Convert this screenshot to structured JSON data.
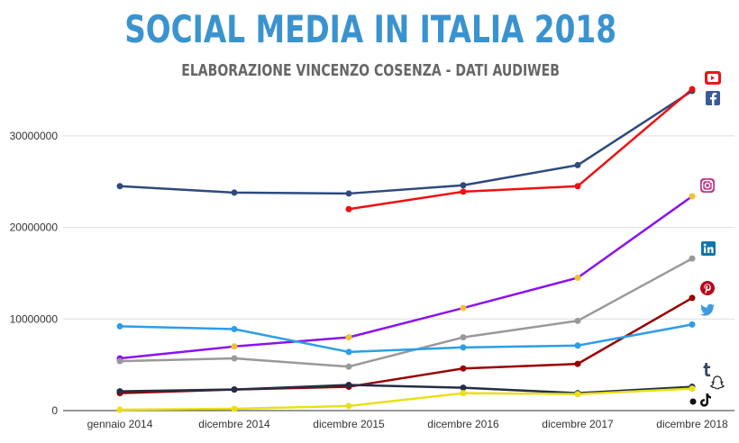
{
  "chart_data": {
    "type": "line",
    "title": "SOCIAL MEDIA IN ITALIA 2018",
    "subtitle": "ELABORAZIONE VINCENZO COSENZA - DATI AUDIWEB",
    "categories": [
      "gennaio 2014",
      "dicembre 2014",
      "dicembre 2015",
      "dicembre 2016",
      "dicembre 2017",
      "dicembre 2018"
    ],
    "ylim": [
      0,
      35000000
    ],
    "yticks": [
      0,
      10000000,
      20000000,
      30000000
    ],
    "ytick_labels": [
      "0",
      "10000000",
      "20000000",
      "30000000"
    ],
    "grid": true,
    "series": [
      {
        "icon": "facebook-icon",
        "color": "#2e4a7d",
        "values": [
          24500000,
          23800000,
          23700000,
          24600000,
          26800000,
          34900000
        ]
      },
      {
        "icon": "youtube-icon",
        "color": "#f01010",
        "values": [
          null,
          null,
          22000000,
          23900000,
          24500000,
          35100000
        ]
      },
      {
        "icon": "instagram-icon",
        "color": "#8a12ee",
        "values": [
          5700000,
          7000000,
          8000000,
          11200000,
          14500000,
          23400000
        ]
      },
      {
        "icon": "linkedin-icon",
        "color": "#999999",
        "values": [
          5400000,
          5700000,
          4800000,
          8000000,
          9800000,
          16600000
        ]
      },
      {
        "icon": "pinterest-icon",
        "color": "#990000",
        "values": [
          1900000,
          2300000,
          2600000,
          4600000,
          5100000,
          12300000
        ]
      },
      {
        "icon": "twitter-icon",
        "color": "#2c9ee8",
        "values": [
          9200000,
          8900000,
          6400000,
          6900000,
          7100000,
          9400000
        ]
      },
      {
        "icon": "tumblr-icon",
        "color": "#232e45",
        "values": [
          2100000,
          2300000,
          2800000,
          2500000,
          1900000,
          2600000
        ]
      },
      {
        "icon": "snapchat-icon",
        "color": "#e8e01a",
        "values": [
          100000,
          200000,
          500000,
          1900000,
          1800000,
          2400000
        ]
      }
    ],
    "marker_color": "#f2c12e"
  }
}
